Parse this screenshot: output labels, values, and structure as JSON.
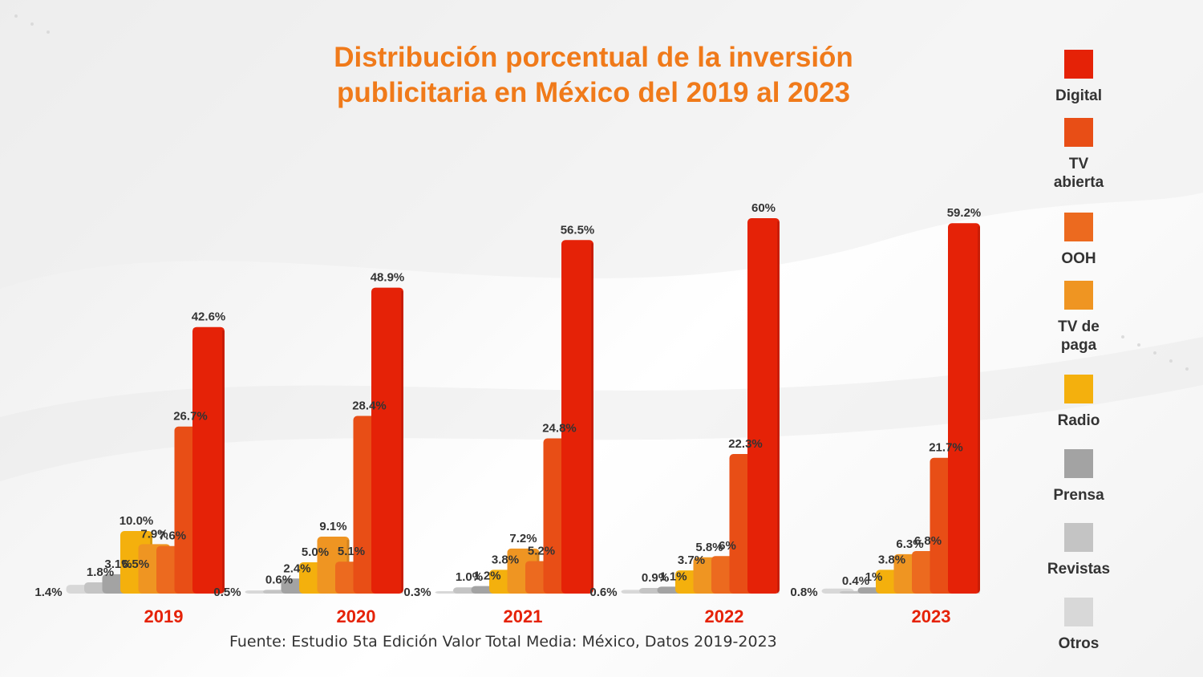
{
  "chart_data": {
    "type": "bar",
    "title_lines": [
      "Distribución porcentual de la inversión",
      "publicitaria en México del 2019 al 2023"
    ],
    "categories": [
      "2019",
      "2020",
      "2021",
      "2022",
      "2023"
    ],
    "series": [
      {
        "name": "Digital",
        "color": "#e52207",
        "values": [
          42.6,
          48.9,
          56.5,
          60,
          59.2
        ],
        "labels": [
          "42.6%",
          "48.9%",
          "56.5%",
          "60%",
          "59.2%"
        ]
      },
      {
        "name": "TV abierta",
        "color": "#e84e16",
        "values": [
          26.7,
          28.4,
          24.8,
          22.3,
          21.7
        ],
        "labels": [
          "26.7%",
          "28.4%",
          "24.8%",
          "22.3%",
          "21.7%"
        ]
      },
      {
        "name": "OOH",
        "color": "#ec6a1f",
        "values": [
          7.6,
          5.1,
          5.2,
          6,
          6.8
        ],
        "labels": [
          "7.6%",
          "5.1%",
          "5.2%",
          "6%",
          "6.8%"
        ]
      },
      {
        "name": "TV de paga",
        "color": "#ef9522",
        "values": [
          7.9,
          9.1,
          7.2,
          5.8,
          6.3
        ],
        "labels": [
          "7.9%",
          "9.1%",
          "7.2%",
          "5.8%",
          "6.3%"
        ]
      },
      {
        "name": "Radio",
        "color": "#f4b00d",
        "values": [
          10.0,
          5.0,
          3.8,
          3.7,
          3.8
        ],
        "labels": [
          "10.0%",
          "5.0%",
          "3.8%",
          "3.7%",
          "3.8%"
        ]
      },
      {
        "name": "Prensa",
        "color": "#a3a3a3",
        "values": [
          3.1,
          2.4,
          1.2,
          1.1,
          1
        ],
        "labels": [
          "3.1%",
          "2.4%",
          "1.2%",
          "1.1%",
          "1%"
        ]
      },
      {
        "name": "Revistas",
        "color": "#c4c4c4",
        "values": [
          1.8,
          0.6,
          1.0,
          0.9,
          0.4
        ],
        "labels": [
          "1.8%",
          "0.6%",
          "1.0%",
          "0.9%",
          "0.4%"
        ]
      },
      {
        "name": "Otros",
        "color": "#d8d8d8",
        "values": [
          1.4,
          0.5,
          0.3,
          0.6,
          0.8
        ],
        "labels": [
          "1.4%",
          "0.5%",
          "0.3%",
          "0.6%",
          "0.8%"
        ]
      }
    ],
    "extra_labels": [
      "6.5%"
    ],
    "category_color": "#e52207",
    "title_color": "#f07a1a",
    "legend_position": "right",
    "grid": false
  },
  "legend": [
    {
      "label": "Digital",
      "color": "#e52207"
    },
    {
      "label": "TV\nabierta",
      "color": "#e84e16"
    },
    {
      "label": "OOH",
      "color": "#ec6a1f"
    },
    {
      "label": "TV de\npaga",
      "color": "#ef9522"
    },
    {
      "label": "Radio",
      "color": "#f4b00d"
    },
    {
      "label": "Prensa",
      "color": "#a3a3a3"
    },
    {
      "label": "Revistas",
      "color": "#c4c4c4"
    },
    {
      "label": "Otros",
      "color": "#d8d8d8"
    }
  ],
  "source": "Fuente: Estudio 5ta Edición Valor Total Media: México, Datos 2019-2023"
}
